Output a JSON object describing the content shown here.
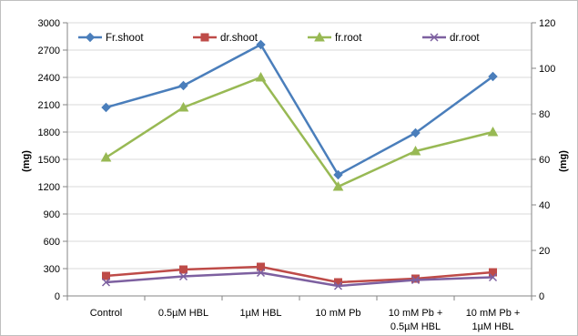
{
  "chart_data": {
    "type": "line",
    "categories": [
      [
        "Control"
      ],
      [
        "0.5µM HBL"
      ],
      [
        "1µM HBL"
      ],
      [
        "10 mM Pb"
      ],
      [
        "10 mM Pb +",
        "0.5µM HBL"
      ],
      [
        "10 mM Pb +",
        "1µM HBL"
      ]
    ],
    "ylabel": "(mg)",
    "y2label": "(mg)",
    "ylim": [
      0,
      3000
    ],
    "yticks": [
      0,
      300,
      600,
      900,
      1200,
      1500,
      1800,
      2100,
      2400,
      2700,
      3000
    ],
    "y2lim": [
      0,
      120
    ],
    "y2ticks": [
      0,
      20,
      40,
      60,
      80,
      100,
      120
    ],
    "legend_position": "top",
    "series": [
      {
        "name": "Fr.shoot",
        "axis": "left",
        "color": "#4a7ebb",
        "marker": "diamond",
        "values": [
          2070,
          2310,
          2760,
          1330,
          1790,
          2410
        ]
      },
      {
        "name": "dr.shoot",
        "axis": "left",
        "color": "#be4b48",
        "marker": "square",
        "values": [
          220,
          290,
          320,
          150,
          190,
          260
        ]
      },
      {
        "name": "fr.root",
        "axis": "left",
        "color": "#98b954",
        "marker": "triangle",
        "values": [
          1520,
          2070,
          2400,
          1200,
          1590,
          1800
        ]
      },
      {
        "name": "dr.root",
        "axis": "left",
        "color": "#7d60a0",
        "marker": "x",
        "values": [
          150,
          215,
          255,
          110,
          175,
          205
        ]
      }
    ]
  }
}
